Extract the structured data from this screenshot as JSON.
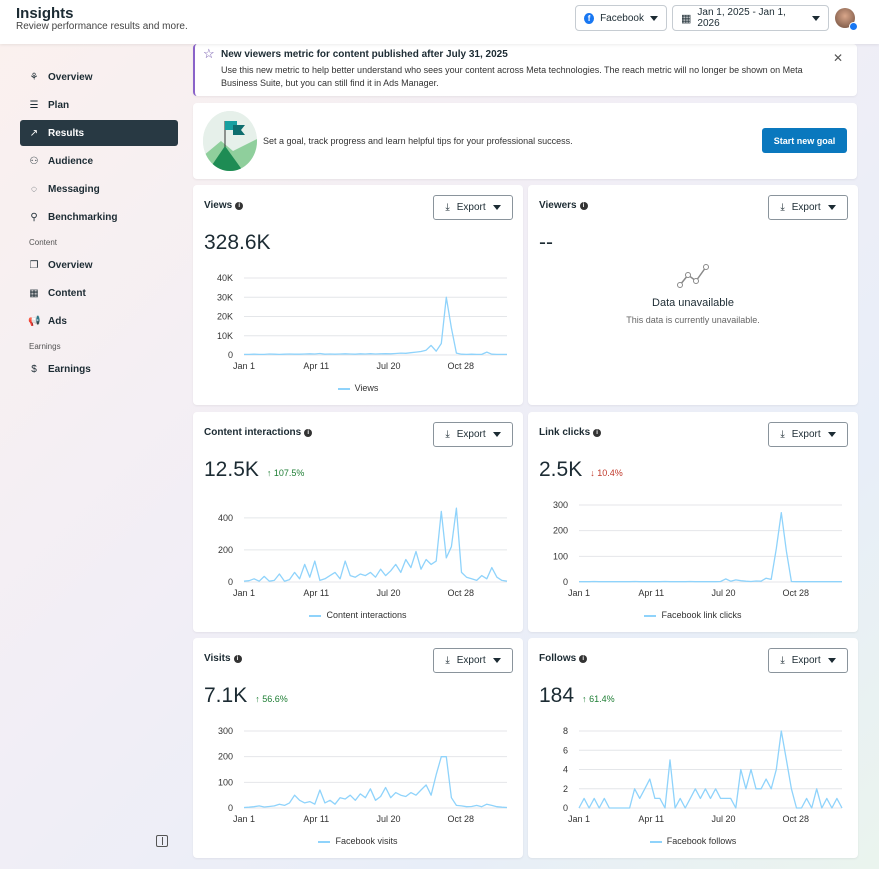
{
  "header": {
    "title": "Insights",
    "subtitle": "Review performance results and more.",
    "platform": "Facebook",
    "date_range": "Jan 1, 2025 - Jan 1, 2026"
  },
  "sidebar": {
    "items": [
      {
        "label": "Overview",
        "icon": "network-icon"
      },
      {
        "label": "Plan",
        "icon": "list-icon"
      },
      {
        "label": "Results",
        "icon": "trend-icon",
        "active": true
      },
      {
        "label": "Audience",
        "icon": "people-icon"
      },
      {
        "label": "Messaging",
        "icon": "chat-icon"
      },
      {
        "label": "Benchmarking",
        "icon": "benchmark-icon"
      }
    ],
    "content_section": "Content",
    "content_items": [
      {
        "label": "Overview",
        "icon": "content-overview-icon"
      },
      {
        "label": "Content",
        "icon": "table-icon"
      },
      {
        "label": "Ads",
        "icon": "megaphone-icon"
      }
    ],
    "earnings_section": "Earnings",
    "earnings_items": [
      {
        "label": "Earnings",
        "icon": "dollar-icon"
      }
    ]
  },
  "notice": {
    "title": "New viewers metric for content published after July 31, 2025",
    "body": "Use this new metric to help better understand who sees your content across Meta technologies. The reach metric will no longer be shown on Meta Business Suite, but you can still find it in Ads Manager."
  },
  "goal": {
    "text": "Set a goal, track progress and learn helpful tips for your professional success.",
    "button": "Start new goal"
  },
  "export_label": "Export",
  "viewers": {
    "title": "Viewers",
    "value": "--",
    "unavailable_title": "Data unavailable",
    "unavailable_body": "This data is currently unavailable."
  },
  "accent": "#0a78be",
  "series_color": "#8fd3fb",
  "chart_data": [
    {
      "type": "line",
      "title": "Views",
      "total": "328.6K",
      "legend": "Views",
      "x_ticks": [
        "Jan 1",
        "Apr 11",
        "Jul 20",
        "Oct 28"
      ],
      "y_ticks": [
        "0",
        "10K",
        "20K",
        "30K",
        "40K"
      ],
      "y_tick_values": [
        0,
        10,
        20,
        30,
        40
      ],
      "ylim": [
        0,
        40
      ],
      "x": "weekly, Jan 1 2025 - Dec 31 2025",
      "values": [
        0.3,
        0.3,
        0.4,
        0.3,
        0.3,
        0.5,
        0.4,
        0.3,
        0.4,
        0.5,
        0.4,
        0.4,
        0.5,
        0.6,
        0.5,
        0.8,
        0.4,
        0.5,
        0.4,
        0.5,
        0.6,
        0.5,
        0.4,
        0.6,
        0.5,
        0.7,
        0.5,
        0.6,
        0.7,
        0.6,
        0.8,
        1,
        0.9,
        1.2,
        1.5,
        1.8,
        2.5,
        5,
        2,
        6,
        30,
        14,
        1,
        0.4,
        0.3,
        0.4,
        0.3,
        0.3,
        1.5,
        0.4,
        0.3,
        0.3,
        0.3
      ]
    },
    {
      "type": "line",
      "title": "Content interactions",
      "total": "12.5K",
      "delta": "107.5%",
      "direction": "up",
      "legend": "Content interactions",
      "x_ticks": [
        "Jan 1",
        "Apr 11",
        "Jul 20",
        "Oct 28"
      ],
      "y_ticks": [
        "0",
        "200",
        "400"
      ],
      "y_tick_values": [
        0,
        200,
        400
      ],
      "ylim": [
        0,
        480
      ],
      "values": [
        5,
        8,
        20,
        5,
        35,
        5,
        10,
        50,
        5,
        15,
        60,
        20,
        110,
        30,
        130,
        10,
        20,
        40,
        60,
        20,
        130,
        40,
        30,
        50,
        40,
        60,
        30,
        80,
        40,
        70,
        110,
        60,
        140,
        90,
        190,
        80,
        140,
        110,
        130,
        440,
        150,
        220,
        460,
        60,
        30,
        20,
        10,
        40,
        20,
        90,
        30,
        10,
        5
      ]
    },
    {
      "type": "line",
      "title": "Link clicks",
      "total": "2.5K",
      "delta": "10.4%",
      "direction": "down",
      "legend": "Facebook link clicks",
      "x_ticks": [
        "Jan 1",
        "Apr 11",
        "Jul 20",
        "Oct 28"
      ],
      "y_ticks": [
        "0",
        "100",
        "200",
        "300"
      ],
      "y_tick_values": [
        0,
        100,
        200,
        300
      ],
      "ylim": [
        0,
        300
      ],
      "values": [
        1,
        1,
        1,
        2,
        1,
        1,
        1,
        1,
        1,
        1,
        1,
        2,
        1,
        1,
        1,
        1,
        1,
        2,
        1,
        1,
        1,
        1,
        2,
        1,
        1,
        1,
        1,
        1,
        2,
        12,
        3,
        8,
        5,
        3,
        2,
        4,
        3,
        15,
        10,
        130,
        270,
        120,
        2,
        1,
        1,
        1,
        1,
        1,
        1,
        1,
        1,
        1,
        1
      ]
    },
    {
      "type": "line",
      "title": "Visits",
      "total": "7.1K",
      "delta": "56.6%",
      "direction": "up",
      "legend": "Facebook visits",
      "x_ticks": [
        "Jan 1",
        "Apr 11",
        "Jul 20",
        "Oct 28"
      ],
      "y_ticks": [
        "0",
        "100",
        "200",
        "300"
      ],
      "y_tick_values": [
        0,
        100,
        200,
        300
      ],
      "ylim": [
        0,
        300
      ],
      "values": [
        2,
        3,
        5,
        8,
        4,
        6,
        8,
        15,
        10,
        20,
        50,
        30,
        20,
        25,
        15,
        70,
        20,
        30,
        15,
        40,
        35,
        50,
        30,
        55,
        40,
        75,
        30,
        45,
        80,
        40,
        60,
        50,
        45,
        60,
        50,
        70,
        90,
        50,
        130,
        200,
        200,
        40,
        10,
        8,
        5,
        6,
        10,
        5,
        15,
        10,
        5,
        3,
        2
      ]
    },
    {
      "type": "line",
      "title": "Follows",
      "total": "184",
      "delta": "61.4%",
      "direction": "up",
      "legend": "Facebook follows",
      "x_ticks": [
        "Jan 1",
        "Apr 11",
        "Jul 20",
        "Oct 28"
      ],
      "y_ticks": [
        "0",
        "2",
        "4",
        "6",
        "8"
      ],
      "y_tick_values": [
        0,
        2,
        4,
        6,
        8
      ],
      "ylim": [
        0,
        8
      ],
      "values": [
        0,
        1,
        0,
        1,
        0,
        1,
        0,
        0,
        0,
        0,
        0,
        2,
        1,
        2,
        3,
        1,
        1,
        0,
        5,
        0,
        1,
        0,
        1,
        2,
        1,
        2,
        1,
        2,
        1,
        1,
        1,
        0,
        4,
        2,
        4,
        2,
        2,
        3,
        2,
        4,
        8,
        5,
        2,
        0,
        0,
        1,
        0,
        2,
        0,
        1,
        0,
        1,
        0
      ]
    }
  ]
}
